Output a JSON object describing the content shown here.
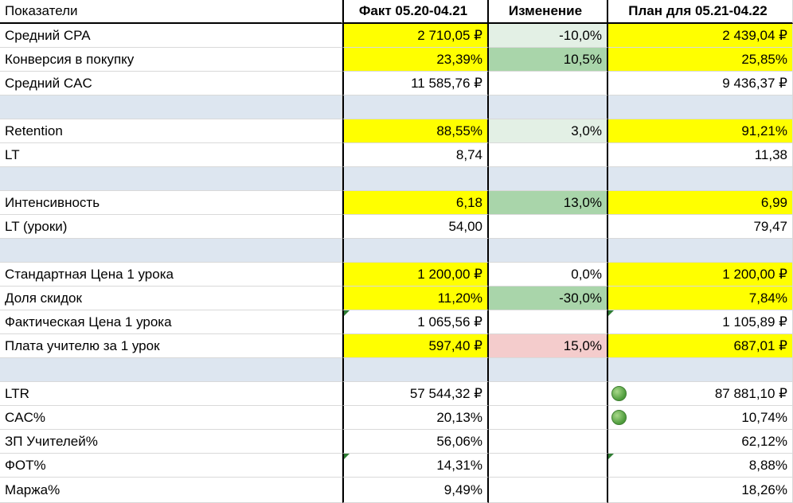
{
  "header": {
    "label": "Показатели",
    "fact": "Факт 05.20-04.21",
    "change": "Изменение",
    "plan": "План для 05.21-04.22"
  },
  "rows": [
    {
      "label": "Средний CPA",
      "fact": "2 710,05 ₽",
      "change": "-10,0%",
      "plan": "2 439,04 ₽"
    },
    {
      "label": "Конверсия в покупку",
      "fact": "23,39%",
      "change": "10,5%",
      "plan": "25,85%"
    },
    {
      "label": "Средний CAC",
      "fact": "11 585,76 ₽",
      "change": "",
      "plan": "9 436,37 ₽"
    },
    {
      "label": "",
      "fact": "",
      "change": "",
      "plan": ""
    },
    {
      "label": "Retention",
      "fact": "88,55%",
      "change": "3,0%",
      "plan": "91,21%"
    },
    {
      "label": "LT",
      "fact": "8,74",
      "change": "",
      "plan": "11,38"
    },
    {
      "label": "",
      "fact": "",
      "change": "",
      "plan": ""
    },
    {
      "label": "Интенсивность",
      "fact": "6,18",
      "change": "13,0%",
      "plan": "6,99"
    },
    {
      "label": "LT (уроки)",
      "fact": "54,00",
      "change": "",
      "plan": "79,47"
    },
    {
      "label": "",
      "fact": "",
      "change": "",
      "plan": ""
    },
    {
      "label": "Стандартная Цена 1 урока",
      "fact": "1 200,00 ₽",
      "change": "0,0%",
      "plan": "1 200,00 ₽"
    },
    {
      "label": "Доля скидок",
      "fact": "11,20%",
      "change": "-30,0%",
      "plan": "7,84%"
    },
    {
      "label": "Фактическая Цена 1 урока",
      "fact": "1 065,56 ₽",
      "change": "",
      "plan": "1 105,89 ₽"
    },
    {
      "label": "Плата учителю за 1 урок",
      "fact": "597,40 ₽",
      "change": "15,0%",
      "plan": "687,01 ₽"
    },
    {
      "label": "",
      "fact": "",
      "change": "",
      "plan": ""
    },
    {
      "label": "LTR",
      "fact": "57 544,32 ₽",
      "change": "",
      "plan": "87 881,10 ₽"
    },
    {
      "label": "CAC%",
      "fact": "20,13%",
      "change": "",
      "plan": "10,74%"
    },
    {
      "label": "ЗП Учителей%",
      "fact": "56,06%",
      "change": "",
      "plan": "62,12%"
    },
    {
      "label": "ФОТ%",
      "fact": "14,31%",
      "change": "",
      "plan": "8,88%"
    },
    {
      "label": "Маржа%",
      "fact": "9,49%",
      "change": "",
      "plan": "18,26%"
    }
  ],
  "colors": {
    "highlight_yellow": "#ffff00",
    "change_green": "#a9d5aa",
    "change_lightgreen": "#e3f0e5",
    "change_pink": "#f4cccc",
    "separator_blue": "#dde6f0",
    "indicator_dot": "green-circle-icon",
    "comment_marker": "green-triangle-icon"
  }
}
